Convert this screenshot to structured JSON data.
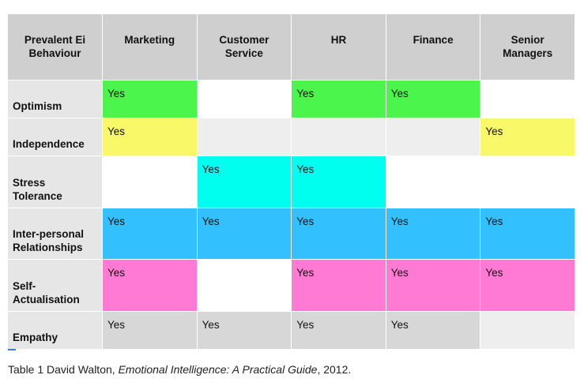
{
  "colors": {
    "header_bg": "#cfcfcf",
    "rowhead_bg": "#e6e6e6",
    "green": "#4cf54c",
    "yellow": "#f8f868",
    "cyan": "#00ffee",
    "blue": "#33c0ff",
    "pink": "#ff7ad2",
    "grey": "#d7d7d7",
    "light": "#eeeeee",
    "white": "#ffffff"
  },
  "table": {
    "headers": [
      "Prevalent Ei\nBehaviour",
      "Marketing",
      "Customer\nService",
      "HR",
      "Finance",
      "Senior\nManagers"
    ],
    "rows": [
      {
        "label": "Optimism",
        "cells": [
          {
            "text": "Yes",
            "color": "#4cf54c"
          },
          {
            "text": "",
            "color": "#ffffff"
          },
          {
            "text": "Yes",
            "color": "#4cf54c"
          },
          {
            "text": "Yes",
            "color": "#4cf54c"
          },
          {
            "text": "",
            "color": "#ffffff"
          }
        ]
      },
      {
        "label": "Independence",
        "cells": [
          {
            "text": "Yes",
            "color": "#f8f868"
          },
          {
            "text": "",
            "color": "#eeeeee"
          },
          {
            "text": "",
            "color": "#eeeeee"
          },
          {
            "text": "",
            "color": "#eeeeee"
          },
          {
            "text": "Yes",
            "color": "#f8f868"
          }
        ]
      },
      {
        "label": "Stress\nTolerance",
        "cells": [
          {
            "text": "",
            "color": "#ffffff"
          },
          {
            "text": "Yes",
            "color": "#00ffee"
          },
          {
            "text": "Yes",
            "color": "#00ffee"
          },
          {
            "text": "",
            "color": "#ffffff"
          },
          {
            "text": "",
            "color": "#ffffff"
          }
        ]
      },
      {
        "label": "Inter-personal\nRelationships",
        "cells": [
          {
            "text": "Yes",
            "color": "#33c0ff"
          },
          {
            "text": "Yes",
            "color": "#33c0ff"
          },
          {
            "text": "Yes",
            "color": "#33c0ff"
          },
          {
            "text": "Yes",
            "color": "#33c0ff"
          },
          {
            "text": "Yes",
            "color": "#33c0ff"
          }
        ]
      },
      {
        "label": "Self-\nActualisation",
        "cells": [
          {
            "text": "Yes",
            "color": "#ff7ad2"
          },
          {
            "text": "",
            "color": "#ffffff"
          },
          {
            "text": "Yes",
            "color": "#ff7ad2"
          },
          {
            "text": "Yes",
            "color": "#ff7ad2"
          },
          {
            "text": "Yes",
            "color": "#ff7ad2"
          }
        ]
      },
      {
        "label": "Empathy",
        "cells": [
          {
            "text": "Yes",
            "color": "#d7d7d7"
          },
          {
            "text": "Yes",
            "color": "#d7d7d7"
          },
          {
            "text": "Yes",
            "color": "#d7d7d7"
          },
          {
            "text": "Yes",
            "color": "#d7d7d7"
          },
          {
            "text": "",
            "color": "#eeeeee"
          }
        ]
      }
    ]
  },
  "caption": {
    "prefix": "Table 1 David Walton, ",
    "title": "Emotional Intelligence: A Practical Guide",
    "suffix": ", 2012."
  }
}
